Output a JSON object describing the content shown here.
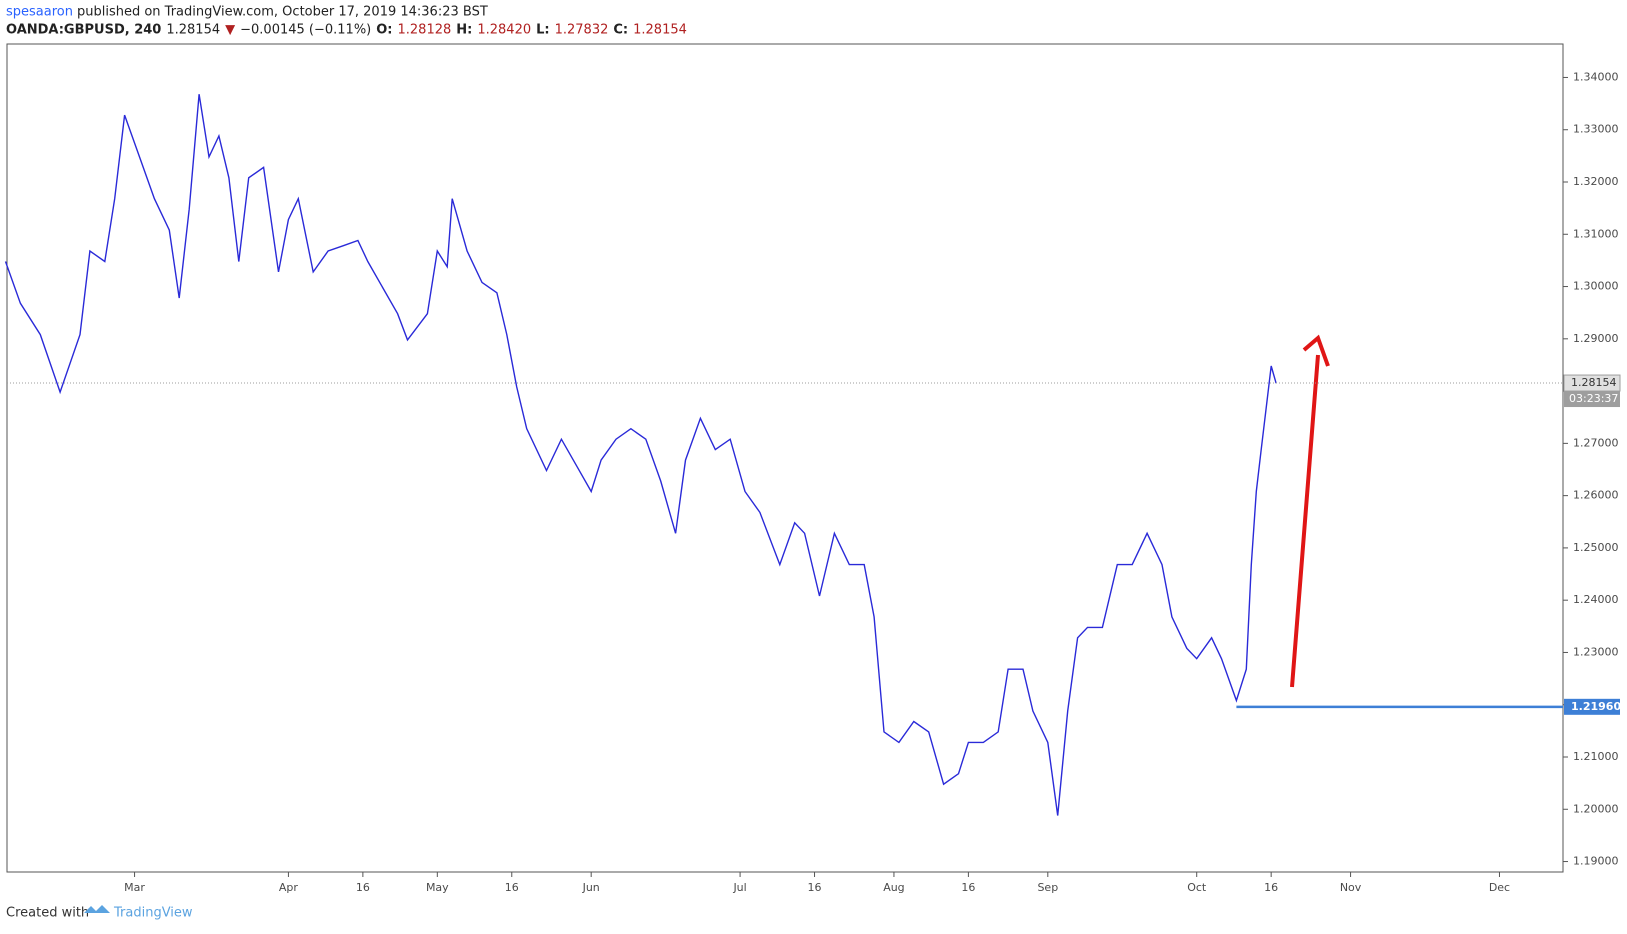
{
  "chart_data": {
    "type": "line",
    "header": {
      "author": "spesaaron",
      "published": "published on TradingView.com, October 17, 2019 14:36:23 BST",
      "symbol": "OANDA:GBPUSD, 240",
      "price": "1.28154",
      "arrow": "▼",
      "change": "−0.00145 (−0.11%)",
      "o_label": "O:",
      "o": "1.28128",
      "h_label": "H:",
      "h": "1.28420",
      "l_label": "L:",
      "l": "1.27832",
      "c_label": "C:",
      "c": "1.28154"
    },
    "footer": {
      "created": "Created with",
      "brand": "TradingView"
    },
    "x": [
      34,
      37,
      41,
      45,
      49,
      51,
      54,
      56,
      58,
      61,
      64,
      67,
      69,
      71,
      73,
      75,
      77,
      79,
      81,
      83,
      86,
      89,
      91,
      93,
      96,
      99,
      102,
      105,
      107,
      110,
      113,
      115,
      119,
      121,
      123,
      124,
      127,
      130,
      133,
      135,
      137,
      139,
      143,
      146,
      149,
      152,
      154,
      157,
      160,
      163,
      166,
      169,
      171,
      174,
      177,
      180,
      183,
      186,
      190,
      193,
      195,
      198,
      201,
      204,
      207,
      209,
      211,
      214,
      217,
      220,
      223,
      226,
      228,
      231,
      234,
      236,
      239,
      241,
      244,
      246,
      248,
      250,
      252,
      255,
      258,
      261,
      264,
      267,
      269,
      272,
      274,
      277,
      279,
      282,
      284,
      285,
      286,
      287,
      289,
      290
    ],
    "series": [
      {
        "name": "GBPUSD",
        "color": "#2a2ad8",
        "values": [
          1.3048,
          1.2968,
          1.2908,
          1.2798,
          1.2908,
          1.3068,
          1.3048,
          1.3168,
          1.3328,
          1.3248,
          1.3168,
          1.3108,
          1.2978,
          1.3148,
          1.3368,
          1.3248,
          1.3288,
          1.3208,
          1.3048,
          1.3208,
          1.3228,
          1.3028,
          1.3128,
          1.3168,
          1.3028,
          1.3068,
          1.3078,
          1.3088,
          1.3048,
          1.2998,
          1.2948,
          1.2898,
          1.2948,
          1.3068,
          1.3038,
          1.3168,
          1.3068,
          1.3008,
          1.2988,
          1.2908,
          1.2808,
          1.2728,
          1.2648,
          1.2708,
          1.2658,
          1.2608,
          1.2668,
          1.2708,
          1.2728,
          1.2708,
          1.2628,
          1.2528,
          1.2668,
          1.2748,
          1.2688,
          1.2708,
          1.2608,
          1.2568,
          1.2468,
          1.2548,
          1.2528,
          1.2408,
          1.2528,
          1.2468,
          1.2468,
          1.2368,
          1.2148,
          1.2128,
          1.2168,
          1.2148,
          1.2048,
          1.2068,
          1.2128,
          1.2128,
          1.2148,
          1.2268,
          1.2268,
          1.2188,
          1.2128,
          1.1988,
          1.2188,
          1.2328,
          1.2348,
          1.2348,
          1.2468,
          1.2468,
          1.2528,
          1.2468,
          1.2368,
          1.2308,
          1.2288,
          1.2328,
          1.2288,
          1.2208,
          1.2268,
          1.2468,
          1.2608,
          1.2688,
          1.2848,
          1.2815
        ]
      }
    ],
    "xlim": [
      34.3,
      347.8
    ],
    "xticks": [
      {
        "value": 60,
        "label": "Mar"
      },
      {
        "value": 91,
        "label": "Apr"
      },
      {
        "value": 106,
        "label": "16"
      },
      {
        "value": 121,
        "label": "May"
      },
      {
        "value": 136,
        "label": "16"
      },
      {
        "value": 152,
        "label": "Jun"
      },
      {
        "value": 182,
        "label": "Jul"
      },
      {
        "value": 197,
        "label": "16"
      },
      {
        "value": 213,
        "label": "Aug"
      },
      {
        "value": 228,
        "label": "16"
      },
      {
        "value": 244,
        "label": "Sep"
      },
      {
        "value": 274,
        "label": "Oct"
      },
      {
        "value": 289,
        "label": "16"
      },
      {
        "value": 305,
        "label": "Nov"
      },
      {
        "value": 335,
        "label": "Dec"
      }
    ],
    "ylim": [
      1.188,
      1.3464
    ],
    "yticks": [
      {
        "value": 1.19,
        "label": "1.19000"
      },
      {
        "value": 1.2,
        "label": "1.20000"
      },
      {
        "value": 1.21,
        "label": "1.21000"
      },
      {
        "value": 1.22,
        "label": "1.22000"
      },
      {
        "value": 1.23,
        "label": "1.23000"
      },
      {
        "value": 1.24,
        "label": "1.24000"
      },
      {
        "value": 1.25,
        "label": "1.25000"
      },
      {
        "value": 1.26,
        "label": "1.26000"
      },
      {
        "value": 1.27,
        "label": "1.27000"
      },
      {
        "value": 1.28,
        "label": "1.28000"
      },
      {
        "value": 1.29,
        "label": "1.29000"
      },
      {
        "value": 1.3,
        "label": "1.30000"
      },
      {
        "value": 1.31,
        "label": "1.31000"
      },
      {
        "value": 1.32,
        "label": "1.32000"
      },
      {
        "value": 1.33,
        "label": "1.33000"
      },
      {
        "value": 1.34,
        "label": "1.34000"
      }
    ],
    "last": {
      "value": 1.28154,
      "label": "1.28154",
      "countdown": "03:23:37",
      "color": "#9e9e9e"
    },
    "level": {
      "value": 1.2196,
      "label": "1.21960",
      "from": 282,
      "color": "#3d7fd6"
    },
    "grid": false
  }
}
